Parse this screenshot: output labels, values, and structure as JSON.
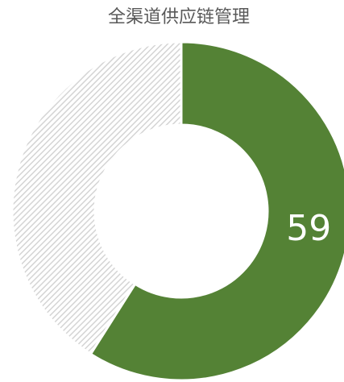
{
  "chart_data": {
    "type": "pie",
    "title": "全渠道供应链管理",
    "values": [
      59,
      41
    ],
    "colors": [
      "#548235",
      "#d4d4d4"
    ],
    "donut": true
  }
}
